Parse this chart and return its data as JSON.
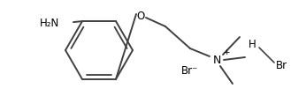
{
  "bg_color": "#ffffff",
  "line_color": "#404040",
  "line_width": 1.4,
  "text_color": "#000000",
  "figsize": [
    3.46,
    1.26
  ],
  "dpi": 100,
  "h2n_label": "H₂N",
  "o_label": "O",
  "n_label": "N",
  "br_minus_label": "Br⁻",
  "n_plus_label": "+",
  "h_label": "H",
  "br_label": "Br"
}
